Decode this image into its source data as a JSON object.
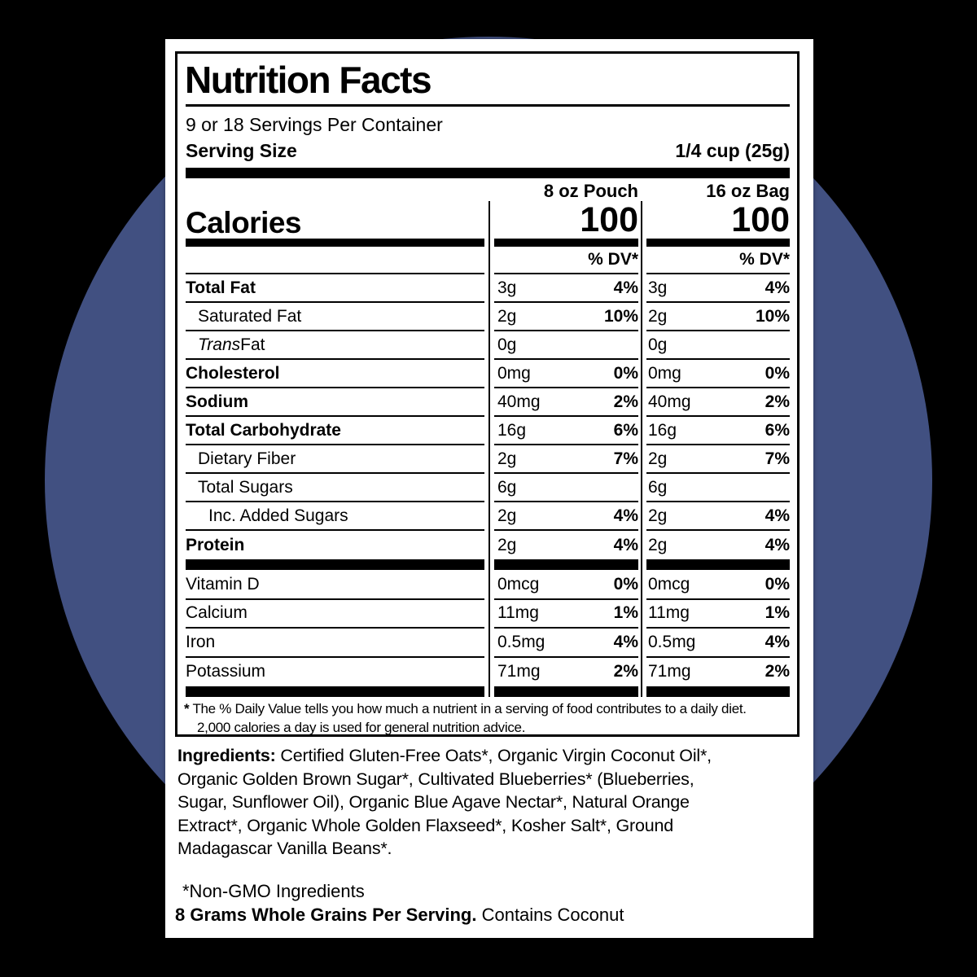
{
  "background": {
    "backdrop_color": "#000000",
    "circle_color": "#415081",
    "panel_color": "#ffffff"
  },
  "label": {
    "title": "Nutrition Facts",
    "servings_per_container": "9 or 18 Servings Per Container",
    "serving_size_label": "Serving Size",
    "serving_size_value": "1/4 cup (25g)",
    "calories_label": "Calories",
    "columns": [
      {
        "name": "8 oz Pouch",
        "calories": "100",
        "dv_header": "% DV*"
      },
      {
        "name": "16 oz Bag",
        "calories": "100",
        "dv_header": "% DV*"
      }
    ],
    "nutrients": [
      {
        "name": "Total Fat",
        "cls": "bold",
        "c1": "3g",
        "c1dv": "4%",
        "c2": "3g",
        "c2dv": "4%"
      },
      {
        "name": "Saturated Fat",
        "cls": "indent1",
        "c1": "2g",
        "c1dv": "10%",
        "c2": "2g",
        "c2dv": "10%"
      },
      {
        "prefix_italic": "Trans",
        "name": " Fat",
        "cls": "indent1",
        "c1": "0g",
        "c1dv": "",
        "c2": "0g",
        "c2dv": ""
      },
      {
        "name": "Cholesterol",
        "cls": "bold",
        "c1": "0mg",
        "c1dv": "0%",
        "c2": "0mg",
        "c2dv": "0%"
      },
      {
        "name": "Sodium",
        "cls": "bold",
        "c1": "40mg",
        "c1dv": "2%",
        "c2": "40mg",
        "c2dv": "2%"
      },
      {
        "name": "Total Carbohydrate",
        "cls": "bold",
        "c1": "16g",
        "c1dv": "6%",
        "c2": "16g",
        "c2dv": "6%"
      },
      {
        "name": "Dietary Fiber",
        "cls": "indent1",
        "c1": "2g",
        "c1dv": "7%",
        "c2": "2g",
        "c2dv": "7%"
      },
      {
        "name": "Total Sugars",
        "cls": "indent1",
        "c1": "6g",
        "c1dv": "",
        "c2": "6g",
        "c2dv": ""
      },
      {
        "name": "Inc. Added Sugars",
        "cls": "indent2",
        "c1": "2g",
        "c1dv": "4%",
        "c2": "2g",
        "c2dv": "4%"
      },
      {
        "name": "Protein",
        "cls": "bold",
        "c1": "2g",
        "c1dv": "4%",
        "c2": "2g",
        "c2dv": "4%"
      }
    ],
    "micronutrients": [
      {
        "name": "Vitamin D",
        "cls": "",
        "c1": "0mcg",
        "c1dv": "0%",
        "c2": "0mcg",
        "c2dv": "0%"
      },
      {
        "name": "Calcium",
        "cls": "",
        "c1": "11mg",
        "c1dv": "1%",
        "c2": "11mg",
        "c2dv": "1%"
      },
      {
        "name": "Iron",
        "cls": "",
        "c1": "0.5mg",
        "c1dv": "4%",
        "c2": "0.5mg",
        "c2dv": "4%"
      },
      {
        "name": "Potassium",
        "cls": "",
        "c1": "71mg",
        "c1dv": "2%",
        "c2": "71mg",
        "c2dv": "2%"
      }
    ],
    "footnote_asterisk": "*",
    "footnote": " The % Daily Value tells you how much a nutrient in a serving of food contributes to a daily diet.\n2,000 calories a day is used for general nutrition advice."
  },
  "ingredients": {
    "label": "Ingredients:",
    "text": " Certified Gluten-Free Oats*, Organic Virgin Coconut Oil*,\nOrganic Golden Brown Sugar*, Cultivated Blueberries* (Blueberries,\nSugar, Sunflower Oil), Organic Blue Agave Nectar*, Natural Orange\nExtract*, Organic Whole Golden Flaxseed*, Kosher Salt*, Ground\nMadagascar Vanilla Beans*."
  },
  "footer": {
    "non_gmo": "*Non-GMO Ingredients",
    "whole_grains_bold": "8 Grams Whole Grains Per Serving.",
    "contains": " Contains Coconut"
  }
}
